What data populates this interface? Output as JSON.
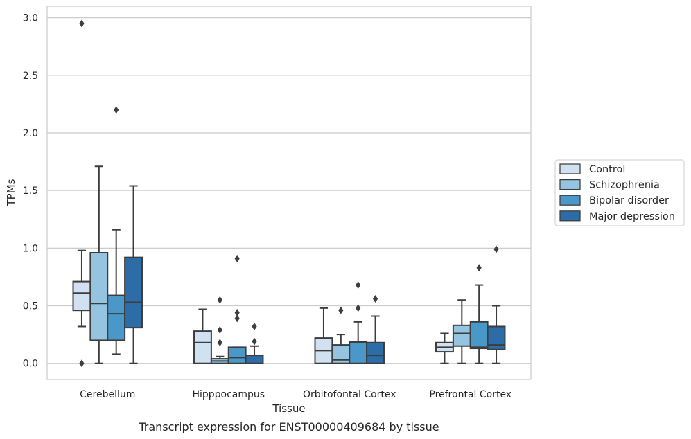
{
  "chart_data": {
    "type": "box",
    "caption": "Transcript expression for ENST00000409684 by tissue",
    "xlabel": "Tissue",
    "ylabel": "TPMs",
    "categories": [
      "Cerebellum",
      "Hipppocampus",
      "Orbitofontal Cortex",
      "Prefrontal Cortex"
    ],
    "ylim": [
      -0.14,
      3.1
    ],
    "yticks": [
      "0.0",
      "0.5",
      "1.0",
      "1.5",
      "2.0",
      "2.5",
      "3.0"
    ],
    "grid": "horizontal",
    "legend_position": "right",
    "series": [
      {
        "name": "Control",
        "color": "#d0e1f2",
        "boxes": [
          {
            "whislo": 0.32,
            "q1": 0.46,
            "med": 0.61,
            "q3": 0.71,
            "whishi": 0.98,
            "fliers": [
              2.95,
              0.0
            ]
          },
          {
            "whislo": 0.0,
            "q1": 0.0,
            "med": 0.18,
            "q3": 0.28,
            "whishi": 0.47,
            "fliers": []
          },
          {
            "whislo": 0.0,
            "q1": 0.0,
            "med": 0.11,
            "q3": 0.22,
            "whishi": 0.48,
            "fliers": []
          },
          {
            "whislo": 0.0,
            "q1": 0.1,
            "med": 0.14,
            "q3": 0.18,
            "whishi": 0.26,
            "fliers": []
          }
        ]
      },
      {
        "name": "Schizophrenia",
        "color": "#94c4df",
        "boxes": [
          {
            "whislo": 0.0,
            "q1": 0.2,
            "med": 0.52,
            "q3": 0.96,
            "whishi": 1.71,
            "fliers": []
          },
          {
            "whislo": 0.0,
            "q1": 0.0,
            "med": 0.02,
            "q3": 0.04,
            "whishi": 0.06,
            "fliers": [
              0.55,
              0.29,
              0.18
            ]
          },
          {
            "whislo": 0.0,
            "q1": 0.0,
            "med": 0.03,
            "q3": 0.16,
            "whishi": 0.25,
            "fliers": [
              0.46
            ]
          },
          {
            "whislo": 0.0,
            "q1": 0.15,
            "med": 0.26,
            "q3": 0.33,
            "whishi": 0.55,
            "fliers": []
          }
        ]
      },
      {
        "name": "Bipolar disorder",
        "color": "#4a98c9",
        "boxes": [
          {
            "whislo": 0.08,
            "q1": 0.2,
            "med": 0.43,
            "q3": 0.59,
            "whishi": 1.16,
            "fliers": [
              2.2
            ]
          },
          {
            "whislo": 0.0,
            "q1": 0.0,
            "med": 0.05,
            "q3": 0.14,
            "whishi": 0.14,
            "fliers": [
              0.91,
              0.44,
              0.39
            ]
          },
          {
            "whislo": 0.0,
            "q1": 0.0,
            "med": 0.18,
            "q3": 0.19,
            "whishi": 0.36,
            "fliers": [
              0.68,
              0.48
            ]
          },
          {
            "whislo": 0.0,
            "q1": 0.13,
            "med": 0.14,
            "q3": 0.36,
            "whishi": 0.68,
            "fliers": [
              0.83
            ]
          }
        ]
      },
      {
        "name": "Major depression",
        "color": "#2c6da8",
        "boxes": [
          {
            "whislo": 0.0,
            "q1": 0.31,
            "med": 0.53,
            "q3": 0.92,
            "whishi": 1.54,
            "fliers": []
          },
          {
            "whislo": 0.0,
            "q1": 0.0,
            "med": 0.07,
            "q3": 0.07,
            "whishi": 0.15,
            "fliers": [
              0.32,
              0.19
            ]
          },
          {
            "whislo": 0.0,
            "q1": 0.0,
            "med": 0.07,
            "q3": 0.18,
            "whishi": 0.41,
            "fliers": [
              0.56
            ]
          },
          {
            "whislo": 0.0,
            "q1": 0.12,
            "med": 0.16,
            "q3": 0.32,
            "whishi": 0.5,
            "fliers": [
              0.99
            ]
          }
        ]
      }
    ]
  }
}
